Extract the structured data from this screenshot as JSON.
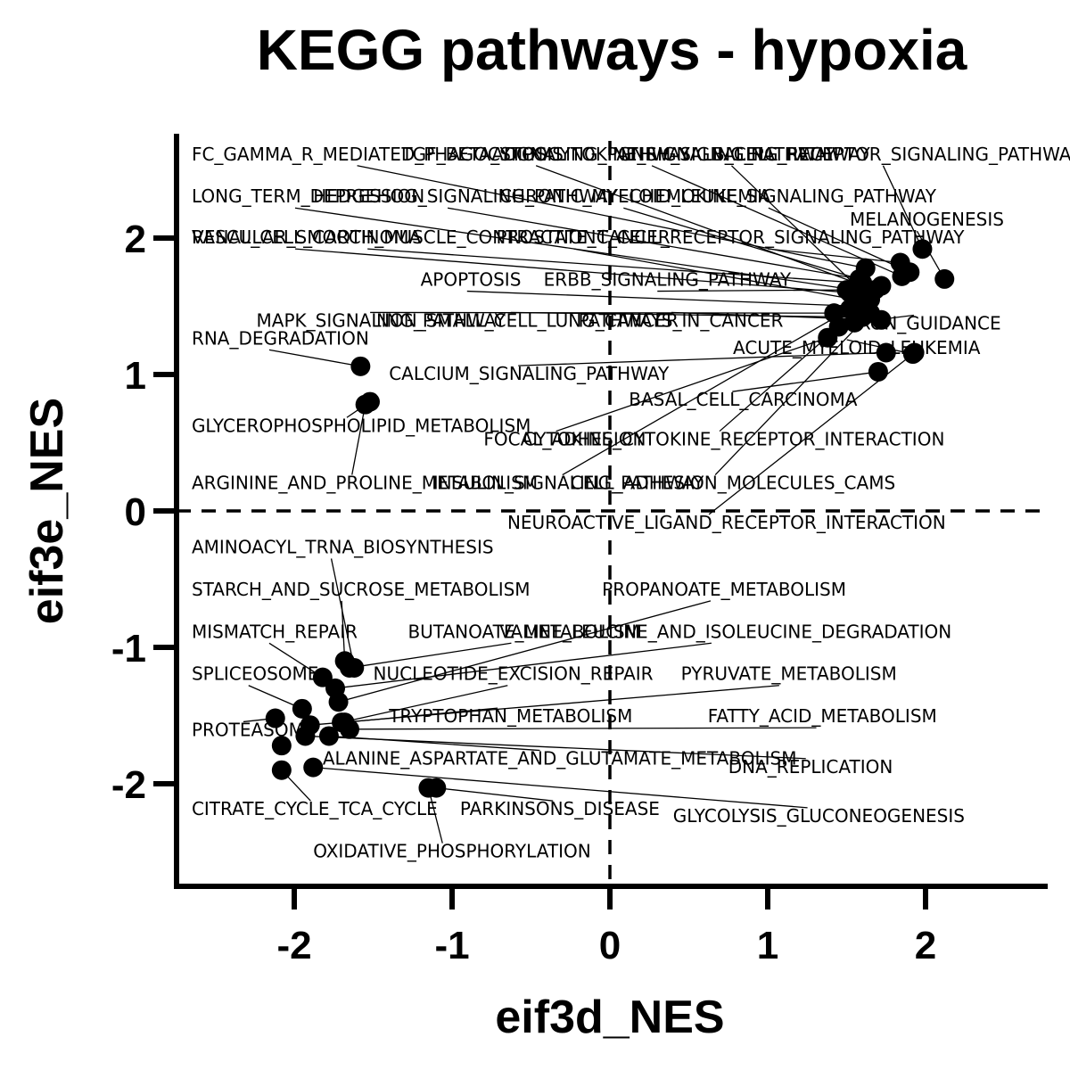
{
  "chart_data": {
    "type": "scatter",
    "title": "KEGG pathways - hypoxia",
    "xlabel": "eif3d_NES",
    "ylabel": "eif3e_NES",
    "xlim": [
      -2.75,
      2.75
    ],
    "ylim": [
      -2.75,
      2.75
    ],
    "xticks": [
      -2,
      -1,
      0,
      1,
      2
    ],
    "yticks": [
      -2,
      -1,
      0,
      1,
      2
    ],
    "reference_lines": {
      "x": 0,
      "y": 0,
      "style": "dashed"
    },
    "grid": false,
    "legend": "none",
    "color": "#000000",
    "points": [
      {
        "label": "FC_GAMMA_R_MEDIATED_PHAGOCYTOSIS",
        "x": 1.62,
        "y": 1.78,
        "label_x": -2.65,
        "label_y": 2.57
      },
      {
        "label": "TGF_BETA_SIGNALING_PATHWAY",
        "x": 1.68,
        "y": 1.62,
        "label_x": -1.32,
        "label_y": 2.57
      },
      {
        "label": "ADIPOCYTOKINE_SIGNALING_PATHWAY",
        "x": 1.85,
        "y": 1.72,
        "label_x": -0.75,
        "label_y": 2.57
      },
      {
        "label": "GNRH_SIGNALING_PATHWAY",
        "x": 1.65,
        "y": 1.55,
        "label_x": 0.05,
        "label_y": 2.57
      },
      {
        "label": "B_CELL_RECEPTOR_SIGNALING_PATHWAY",
        "x": 1.98,
        "y": 1.92,
        "label_x": 0.65,
        "label_y": 2.57
      },
      {
        "label": "LONG_TERM_DEPRESSION",
        "x": 1.55,
        "y": 1.62,
        "label_x": -2.65,
        "label_y": 2.26
      },
      {
        "label": "HEDGEHOG_SIGNALING_PATHWAY",
        "x": 1.58,
        "y": 1.7,
        "label_x": -1.88,
        "label_y": 2.26
      },
      {
        "label": "CHRONIC_MYELOID_LEUKEMIA",
        "x": 1.72,
        "y": 1.65,
        "label_x": -0.7,
        "label_y": 2.26
      },
      {
        "label": "CHEMOKINE_SIGNALING_PATHWAY",
        "x": 1.9,
        "y": 1.75,
        "label_x": 0.12,
        "label_y": 2.26
      },
      {
        "label": "MELANOGENESIS",
        "x": 2.12,
        "y": 1.7,
        "label_x": 1.52,
        "label_y": 2.09
      },
      {
        "label": "RENAL_CELL_CARCINOMA",
        "x": 1.52,
        "y": 1.6,
        "label_x": -2.65,
        "label_y": 1.96
      },
      {
        "label": "VASCULAR_SMOOTH_MUSCLE_CONTRACTION",
        "x": 1.6,
        "y": 1.67,
        "label_x": -2.65,
        "label_y": 1.96
      },
      {
        "label": "PROSTATE_CANCER",
        "x": 1.55,
        "y": 1.55,
        "label_x": -0.72,
        "label_y": 1.96
      },
      {
        "label": "T_CELL_RECEPTOR_SIGNALING_PATHWAY",
        "x": 1.84,
        "y": 1.82,
        "label_x": -0.08,
        "label_y": 1.96
      },
      {
        "label": "APOPTOSIS",
        "x": 1.58,
        "y": 1.5,
        "label_x": -1.2,
        "label_y": 1.65
      },
      {
        "label": "ERBB_SIGNALING_PATHWAY",
        "x": 1.5,
        "y": 1.62,
        "label_x": -0.42,
        "label_y": 1.65
      },
      {
        "label": "MAPK_SIGNALING_PATHWAY",
        "x": 1.42,
        "y": 1.45,
        "label_x": -2.24,
        "label_y": 1.35
      },
      {
        "label": "NON_SMALL_CELL_LUNG_CANCER",
        "x": 1.6,
        "y": 1.42,
        "label_x": -1.48,
        "label_y": 1.35
      },
      {
        "label": "PATHWAYS_IN_CANCER",
        "x": 1.72,
        "y": 1.4,
        "label_x": -0.2,
        "label_y": 1.35
      },
      {
        "label": "AXON_GUIDANCE",
        "x": 1.55,
        "y": 1.38,
        "label_x": 1.5,
        "label_y": 1.33
      },
      {
        "label": "RNA_DEGRADATION",
        "x": -1.58,
        "y": 1.06,
        "label_x": -2.65,
        "label_y": 1.22
      },
      {
        "label": "ACUTE_MYELOID_LEUKEMIA",
        "x": 1.92,
        "y": 1.15,
        "label_x": 0.78,
        "label_y": 1.15
      },
      {
        "label": "CALCIUM_SIGNALING_PATHWAY",
        "x": 1.75,
        "y": 1.16,
        "label_x": -1.4,
        "label_y": 0.96
      },
      {
        "label": "BASAL_CELL_CARCINOMA",
        "x": 1.7,
        "y": 1.02,
        "label_x": 0.12,
        "label_y": 0.77
      },
      {
        "label": "GLYCEROPHOSPHOLIPID_METABOLISM",
        "x": -1.52,
        "y": 0.8,
        "label_x": -2.65,
        "label_y": 0.58
      },
      {
        "label": "FOCAL_ADHESION",
        "x": 1.38,
        "y": 1.27,
        "label_x": -0.8,
        "label_y": 0.48
      },
      {
        "label": "CYTOKINE_CYTOKINE_RECEPTOR_INTERACTION",
        "x": 1.45,
        "y": 1.35,
        "label_x": -0.55,
        "label_y": 0.48
      },
      {
        "label": "ARGININE_AND_PROLINE_METABOLISM",
        "x": -1.55,
        "y": 0.78,
        "label_x": -2.65,
        "label_y": 0.16
      },
      {
        "label": "INSULIN_SIGNALING_PATHWAY",
        "x": 1.52,
        "y": 1.48,
        "label_x": -1.12,
        "label_y": 0.16
      },
      {
        "label": "CELL_ADHESION_MOLECULES_CAMS",
        "x": 1.65,
        "y": 1.45,
        "label_x": -0.25,
        "label_y": 0.16
      },
      {
        "label": "NEUROACTIVE_LIGAND_RECEPTOR_INTERACTION",
        "x": 1.93,
        "y": 1.16,
        "label_x": -0.65,
        "label_y": -0.13
      },
      {
        "label": "AMINOACYL_TRNA_BIOSYNTHESIS",
        "x": -1.62,
        "y": -1.15,
        "label_x": -2.65,
        "label_y": -0.31
      },
      {
        "label": "STARCH_AND_SUCROSE_METABOLISM",
        "x": -1.68,
        "y": -1.1,
        "label_x": -2.65,
        "label_y": -0.62
      },
      {
        "label": "PROPANOATE_METABOLISM",
        "x": -1.72,
        "y": -1.4,
        "label_x": -0.05,
        "label_y": -0.62
      },
      {
        "label": "MISMATCH_REPAIR",
        "x": -1.82,
        "y": -1.22,
        "label_x": -2.65,
        "label_y": -0.93
      },
      {
        "label": "BUTANOATE_METABOLISM",
        "x": -1.65,
        "y": -1.15,
        "label_x": -1.28,
        "label_y": -0.93
      },
      {
        "label": "VALINE_LEUCINE_AND_ISOLEUCINE_DEGRADATION",
        "x": -1.74,
        "y": -1.3,
        "label_x": -0.7,
        "label_y": -0.93
      },
      {
        "label": "SPLICEOSOME",
        "x": -1.95,
        "y": -1.45,
        "label_x": -2.65,
        "label_y": -1.24
      },
      {
        "label": "NUCLEOTIDE_EXCISION_REPAIR",
        "x": -1.7,
        "y": -1.55,
        "label_x": -1.5,
        "label_y": -1.24
      },
      {
        "label": "PYRUVATE_METABOLISM",
        "x": -1.9,
        "y": -1.57,
        "label_x": 0.45,
        "label_y": -1.24
      },
      {
        "label": "TRYPTOPHAN_METABOLISM",
        "x": -1.68,
        "y": -1.55,
        "label_x": -1.4,
        "label_y": -1.55
      },
      {
        "label": "FATTY_ACID_METABOLISM",
        "x": -1.65,
        "y": -1.6,
        "label_x": 0.62,
        "label_y": -1.55
      },
      {
        "label": "PROTEASOME",
        "x": -2.12,
        "y": -1.52,
        "label_x": -2.65,
        "label_y": -1.65
      },
      {
        "label": "ALANINE_ASPARTATE_AND_GLUTAMATE_METABOLISM",
        "x": -1.78,
        "y": -1.65,
        "label_x": -1.82,
        "label_y": -1.86
      },
      {
        "label": "DNA_REPLICATION",
        "x": -1.93,
        "y": -1.65,
        "label_x": 0.75,
        "label_y": -1.92
      },
      {
        "label": "CITRATE_CYCLE_TCA_CYCLE",
        "x": -2.08,
        "y": -1.9,
        "label_x": -2.65,
        "label_y": -2.23
      },
      {
        "label": "PARKINSONS_DISEASE",
        "x": -1.1,
        "y": -2.03,
        "label_x": -0.95,
        "label_y": -2.23
      },
      {
        "label": "GLYCOLYSIS_GLUCONEOGENESIS",
        "x": -1.88,
        "y": -1.88,
        "label_x": 0.4,
        "label_y": -2.28
      },
      {
        "label": "OXIDATIVE_PHOSPHORYLATION",
        "x": -1.15,
        "y": -2.03,
        "label_x": -1.88,
        "label_y": -2.54
      },
      {
        "label": "",
        "x": -2.08,
        "y": -1.72
      }
    ]
  }
}
